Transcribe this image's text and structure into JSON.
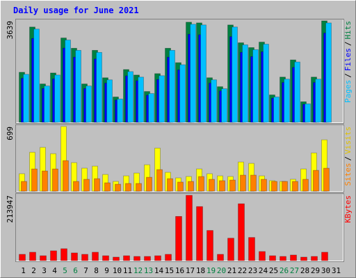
{
  "chart_data": {
    "type": "bar",
    "title": "Daily usage for June 2021",
    "categories": [
      "1",
      "2",
      "3",
      "4",
      "5",
      "6",
      "7",
      "8",
      "9",
      "10",
      "11",
      "12",
      "13",
      "14",
      "15",
      "16",
      "17",
      "18",
      "19",
      "20",
      "21",
      "22",
      "23",
      "24",
      "25",
      "26",
      "27",
      "28",
      "29",
      "30",
      "31"
    ],
    "category_colors": [
      "#000000",
      "#000000",
      "#000000",
      "#000000",
      "#008040",
      "#008040",
      "#000000",
      "#000000",
      "#000000",
      "#000000",
      "#000000",
      "#008040",
      "#008040",
      "#000000",
      "#000000",
      "#000000",
      "#000000",
      "#000000",
      "#008040",
      "#008040",
      "#000000",
      "#000000",
      "#000000",
      "#000000",
      "#000000",
      "#008040",
      "#008040",
      "#000000",
      "#000000",
      "#000000",
      "#000000"
    ],
    "legend_separator": "/",
    "panels": [
      {
        "ylim": [
          0,
          3639
        ],
        "yticks": [
          3639
        ],
        "series": [
          {
            "name": "Pages",
            "color": "#00c0ff",
            "values": [
              1722,
              3345,
              1304,
              1697,
              2952,
              2583,
              1304,
              2509,
              1525,
              836,
              1820,
              1623,
              1033,
              1673,
              2583,
              2066,
              3518,
              3493,
              1526,
              1205,
              3419,
              2780,
              2607,
              2804,
              910,
              1550,
              2165,
              664,
              1550,
              3565,
              0
            ]
          },
          {
            "name": "Files",
            "color": "#0000ff",
            "values": [
              1580,
              3009,
              1213,
              1558,
              2663,
              2338,
              1213,
              2273,
              1407,
              801,
              1667,
              1493,
              974,
              1537,
              2338,
              1883,
              3161,
              3139,
              1408,
              1126,
              3074,
              2512,
              2359,
              2533,
              866,
              1429,
              1970,
              649,
              1429,
              3202,
              0
            ]
          },
          {
            "name": "Hits",
            "color": "#008040",
            "values": [
              1796,
              3419,
              1378,
              1771,
              3026,
              2657,
              1378,
              2583,
              1599,
              910,
              1894,
              1697,
              1107,
              1747,
              2657,
              2140,
              3592,
              3567,
              1600,
              1279,
              3493,
              2854,
              2681,
              2878,
              984,
              1624,
              2239,
              738,
              1624,
              3639,
              0
            ]
          }
        ]
      },
      {
        "ylim": [
          0,
          699
        ],
        "yticks": [
          699
        ],
        "series": [
          {
            "name": "Sites",
            "color": "#ff8000",
            "values": [
              105,
              240,
              218,
              240,
              330,
              105,
              128,
              135,
              90,
              75,
              83,
              83,
              150,
              233,
              135,
              98,
              105,
              158,
              128,
              113,
              120,
              173,
              173,
              128,
              105,
              105,
              105,
              128,
              225,
              248,
              0
            ]
          },
          {
            "name": "Visits",
            "color": "#ffff00",
            "values": [
              188,
              420,
              473,
              405,
              699,
              308,
              248,
              270,
              180,
              105,
              165,
              195,
              285,
              465,
              203,
              143,
              158,
              240,
              188,
              165,
              158,
              315,
              300,
              165,
              113,
              105,
              128,
              240,
              413,
              555,
              0
            ]
          }
        ]
      },
      {
        "ylim": [
          0,
          213947
        ],
        "yticks": [
          213947
        ],
        "series": [
          {
            "name": "KBytes",
            "color": "#ff0000",
            "values": [
              20700,
              27600,
              16100,
              32200,
              39100,
              25300,
              20700,
              27600,
              16100,
              11500,
              16100,
              13800,
              13800,
              16100,
              20700,
              144900,
              213947,
              177100,
              98900,
              20700,
              73600,
              186300,
              75900,
              29900,
              16100,
              13800,
              18400,
              11500,
              13800,
              27600,
              0
            ]
          }
        ]
      }
    ]
  }
}
